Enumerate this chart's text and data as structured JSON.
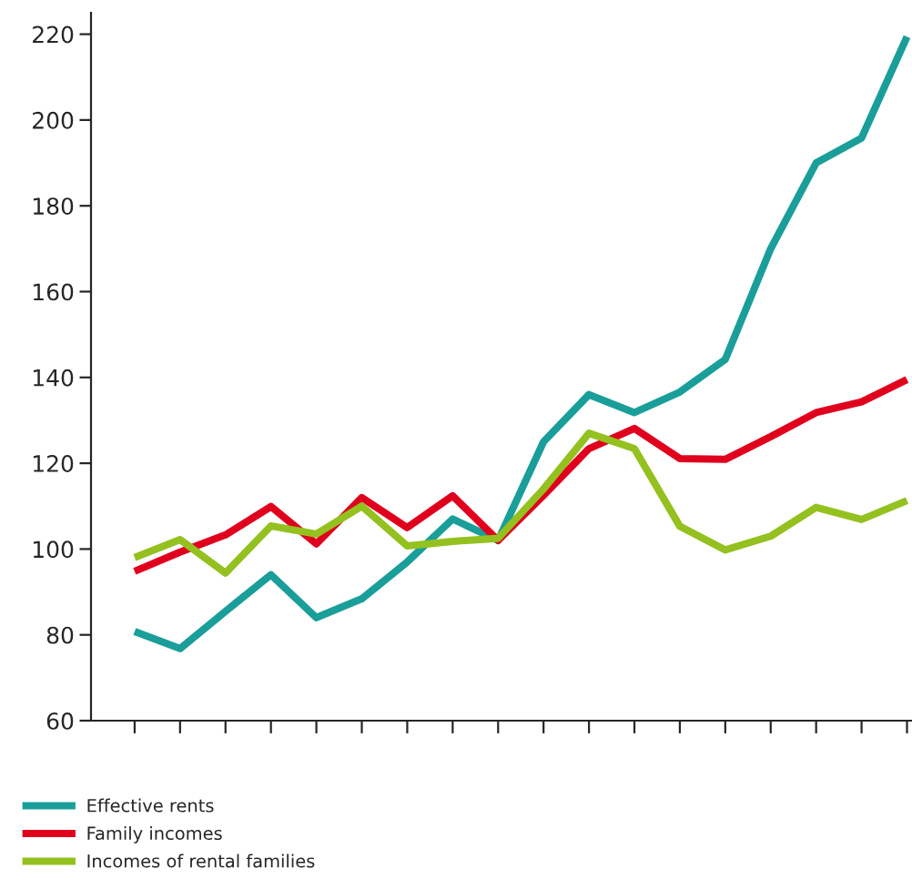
{
  "chart_data": {
    "type": "line",
    "categories": [
      null,
      null,
      null,
      null,
      null,
      null,
      null,
      null,
      null,
      null,
      null,
      null,
      null,
      null,
      null,
      null,
      null,
      null
    ],
    "ylim": [
      60,
      225
    ],
    "yticks": [
      60,
      80,
      100,
      120,
      140,
      160,
      180,
      200,
      220
    ],
    "series": [
      {
        "name": "Effective rents",
        "color": "#1a9e9a",
        "values": [
          80.8,
          76.8,
          85.5,
          94,
          84,
          88.4,
          97,
          107,
          102,
          125,
          136,
          131.8,
          136.6,
          144.2,
          170,
          190,
          195.8,
          219.4
        ]
      },
      {
        "name": "Family incomes",
        "color": "#e0001e",
        "values": [
          94.8,
          99.3,
          103.3,
          109.9,
          101.2,
          112,
          105,
          112.4,
          102,
          112.5,
          123.4,
          128.1,
          121.1,
          120.9,
          126.2,
          131.8,
          134.3,
          139.5
        ]
      },
      {
        "name": "Incomes of rental families",
        "color": "#94c11f",
        "values": [
          98,
          102.2,
          94.4,
          105.4,
          103.5,
          110,
          100.7,
          101.8,
          102.5,
          114,
          127,
          123.4,
          105.3,
          99.8,
          103,
          109.7,
          106.9,
          111.3
        ]
      }
    ],
    "line_style": "solid",
    "grid": false,
    "legend": "bottom left"
  }
}
